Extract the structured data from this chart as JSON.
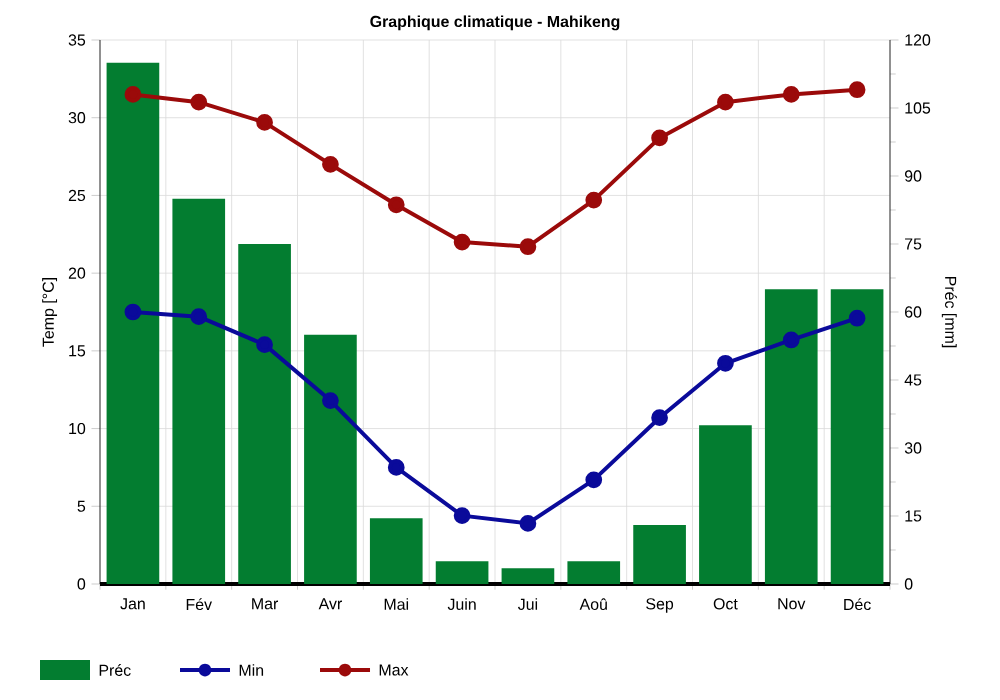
{
  "chart_data": {
    "type": "bar",
    "title": "Graphique climatique - Mahikeng",
    "ylabel": "Temp [°C]",
    "y2label": "Préc [mm]",
    "categories": [
      "Jan",
      "Fév",
      "Mar",
      "Avr",
      "Mai",
      "Juin",
      "Jui",
      "Aoû",
      "Sep",
      "Oct",
      "Nov",
      "Déc"
    ],
    "series": [
      {
        "name": "Préc",
        "axis": "y2",
        "color": "#037d30",
        "values": [
          115,
          85,
          75,
          55,
          14.5,
          5,
          3.5,
          5,
          13,
          35,
          65,
          65
        ]
      },
      {
        "name": "Min",
        "type": "line",
        "color": "#0a0a9a",
        "values": [
          17.5,
          17.2,
          15.4,
          11.8,
          7.5,
          4.4,
          3.9,
          6.7,
          10.7,
          14.2,
          15.7,
          17.1
        ]
      },
      {
        "name": "Max",
        "type": "line",
        "color": "#9b0a0a",
        "values": [
          31.5,
          31,
          29.7,
          27,
          24.4,
          22,
          21.7,
          24.7,
          28.7,
          31,
          31.5,
          31.8
        ]
      }
    ],
    "ylim": [
      0,
      35
    ],
    "yticks": [
      0,
      5,
      10,
      15,
      20,
      25,
      30,
      35
    ],
    "y2lim": [
      0,
      120
    ],
    "y2ticks": [
      0,
      15,
      30,
      45,
      60,
      75,
      90,
      105,
      120
    ],
    "grid": true,
    "legend": "bottom",
    "marker": "circle",
    "line_style": "solid"
  }
}
